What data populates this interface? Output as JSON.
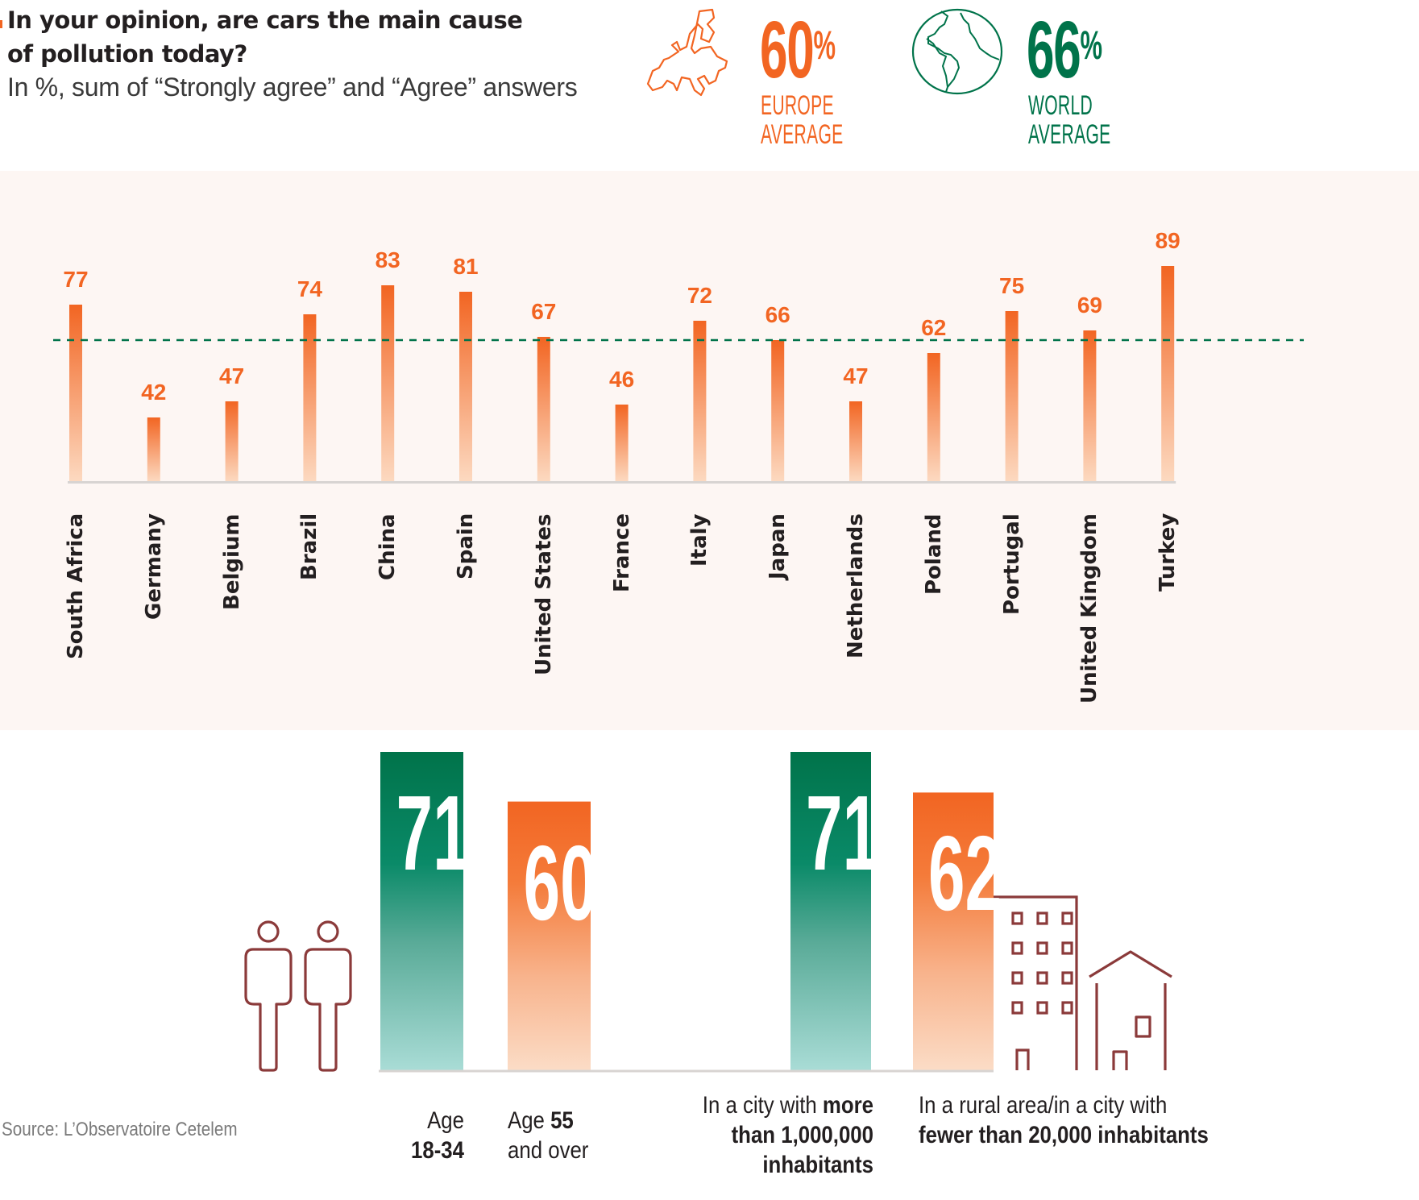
{
  "header": {
    "title_line1": "In your opinion, are cars the main cause",
    "title_line2": "of pollution today?",
    "subtitle": "In %, sum of “Strongly agree” and “Agree” answers"
  },
  "averages": {
    "europe": {
      "value": "60",
      "unit": "%",
      "label_line1": "EUROPE",
      "label_line2": "AVERAGE",
      "icon": "europe-map-icon",
      "color": "#f26522"
    },
    "world": {
      "value": "66",
      "unit": "%",
      "label_line1": "WORLD",
      "label_line2": "AVERAGE",
      "icon": "globe-icon",
      "color": "#00734a"
    }
  },
  "chart_data": [
    {
      "type": "bar",
      "title": "In your opinion, are cars the main cause of pollution today?",
      "subtitle": "In %, sum of “Strongly agree” and “Agree” answers",
      "xlabel": "",
      "ylabel": "",
      "categories": [
        "South Africa",
        "Germany",
        "Belgium",
        "Brazil",
        "China",
        "Spain",
        "United States",
        "France",
        "Italy",
        "Japan",
        "Netherlands",
        "Poland",
        "Portugal",
        "United Kingdom",
        "Turkey"
      ],
      "values": [
        77,
        42,
        47,
        74,
        83,
        81,
        67,
        46,
        72,
        66,
        47,
        62,
        75,
        69,
        89
      ],
      "value_labels": [
        "77",
        "42",
        "47",
        "74",
        "83",
        "81",
        "67",
        "46",
        "72",
        "66",
        "47",
        "62",
        "75",
        "69",
        "89"
      ],
      "reference_line": {
        "value": 66,
        "label": "World average",
        "style": "dashed",
        "color": "#00734a"
      },
      "bar_color": "#f26522",
      "grid": false,
      "legend": "none"
    },
    {
      "type": "bar",
      "title": "",
      "categories": [
        "Age 18-34",
        "Age 55 and over",
        "In a city with more than 1,000,000 inhabitants",
        "In a rural area/in a city with fewer than 20,000 inhabitants"
      ],
      "values": [
        71,
        60,
        71,
        62
      ],
      "value_labels": [
        "71",
        "60",
        "71",
        "62"
      ],
      "colors": [
        "#00734a",
        "#f26522",
        "#00734a",
        "#f26522"
      ],
      "grid": false,
      "legend": "none"
    }
  ],
  "segments": {
    "age_young": {
      "line1": "Age",
      "line2": "18-34"
    },
    "age_old": {
      "line1_normal": "Age ",
      "line1_bold": "55",
      "line2": "and over"
    },
    "city_big": {
      "line1_normal": "In a city with ",
      "line1_bold": "more",
      "line2": "than 1,000,000",
      "line3": "inhabitants"
    },
    "city_small": {
      "line1": "In a rural area/in a city with",
      "line2": "fewer than 20,000 inhabitants"
    }
  },
  "icons": [
    "people-icon",
    "apartment-building-icon",
    "house-icon"
  ],
  "source": "Source: L’Observatoire Cetelem",
  "colors": {
    "orange": "#f26522",
    "green": "#00734a",
    "icon_maroon": "#8b3a3a",
    "band": "#fdf6f3"
  }
}
